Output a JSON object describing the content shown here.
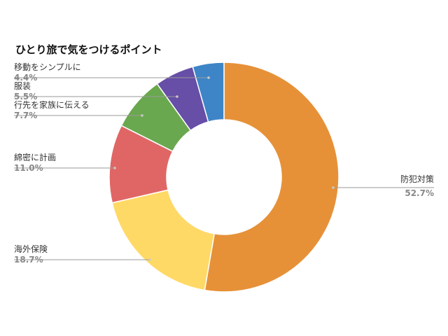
{
  "chart_data": {
    "type": "pie",
    "title": "ひとり旅で気をつけるポイント",
    "slices": [
      {
        "name": "防犯対策",
        "value": 52.7,
        "label": "52.7%",
        "color": "#E69138"
      },
      {
        "name": "海外保険",
        "value": 18.7,
        "label": "18.7%",
        "color": "#FFD966"
      },
      {
        "name": "綿密に計画",
        "value": 11.0,
        "label": "11.0%",
        "color": "#E06666"
      },
      {
        "name": "行先を家族に伝える",
        "value": 7.7,
        "label": "7.7%",
        "color": "#6AA84F"
      },
      {
        "name": "服装",
        "value": 5.5,
        "label": "5.5%",
        "color": "#674EA7"
      },
      {
        "name": "移動をシンプルに",
        "value": 4.4,
        "label": "4.4%",
        "color": "#3D85C6"
      }
    ],
    "donut": true,
    "start_angle": "top",
    "direction": "clockwise",
    "legend": "none"
  }
}
